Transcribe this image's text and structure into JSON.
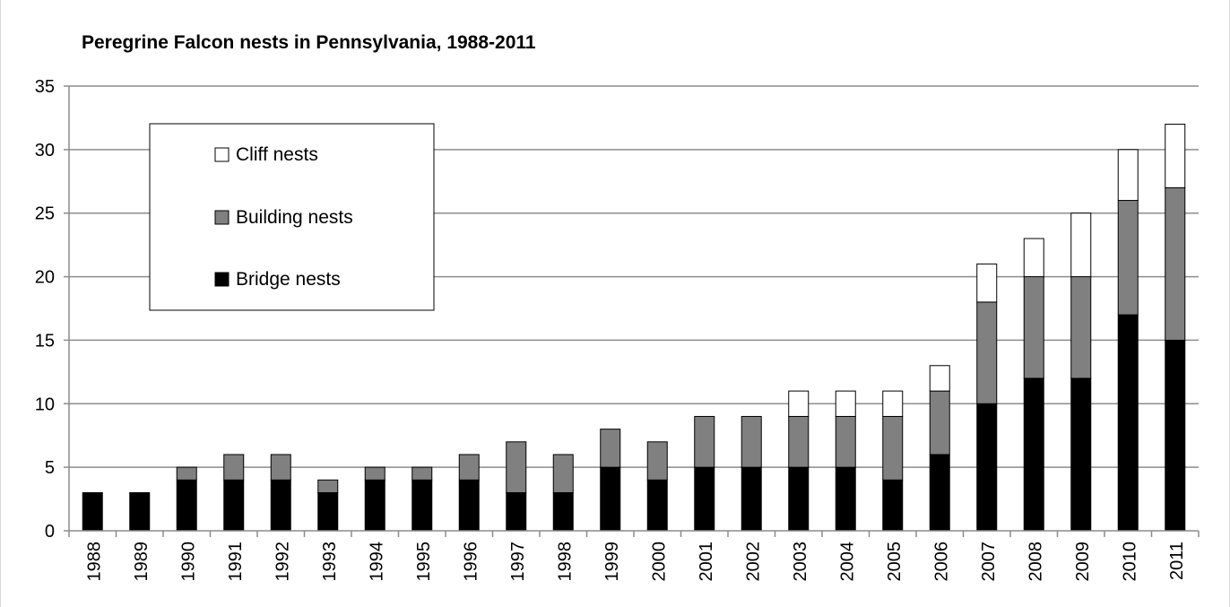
{
  "chart_data": {
    "type": "bar",
    "stacked": true,
    "title": "Peregrine Falcon nests in Pennsylvania, 1988-2011",
    "xlabel": "",
    "ylabel": "",
    "ylim": [
      0,
      35
    ],
    "yticks": [
      0,
      5,
      10,
      15,
      20,
      25,
      30,
      35
    ],
    "grid": true,
    "legend_position": "upper-left",
    "categories": [
      "1988",
      "1989",
      "1990",
      "1991",
      "1992",
      "1993",
      "1994",
      "1995",
      "1996",
      "1997",
      "1998",
      "1999",
      "2000",
      "2001",
      "2002",
      "2003",
      "2004",
      "2005",
      "2006",
      "2007",
      "2008",
      "2009",
      "2010",
      "2011"
    ],
    "series": [
      {
        "name": "Bridge nests",
        "color": "#000000",
        "values": [
          3,
          3,
          4,
          4,
          4,
          3,
          4,
          4,
          4,
          3,
          3,
          5,
          4,
          5,
          5,
          5,
          5,
          4,
          6,
          10,
          12,
          12,
          17,
          15
        ]
      },
      {
        "name": "Building nests",
        "color": "#808080",
        "values": [
          0,
          0,
          1,
          2,
          2,
          1,
          1,
          1,
          2,
          4,
          3,
          3,
          3,
          4,
          4,
          4,
          4,
          5,
          5,
          8,
          8,
          8,
          9,
          12
        ]
      },
      {
        "name": "Cliff nests",
        "color": "#ffffff",
        "values": [
          0,
          0,
          0,
          0,
          0,
          0,
          0,
          0,
          0,
          0,
          0,
          0,
          0,
          0,
          0,
          2,
          2,
          2,
          2,
          3,
          3,
          5,
          4,
          5
        ]
      }
    ],
    "legend_order": [
      "Cliff nests",
      "Building nests",
      "Bridge nests"
    ]
  }
}
